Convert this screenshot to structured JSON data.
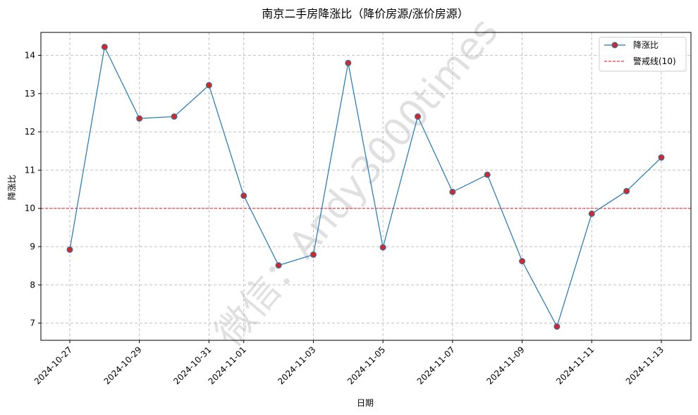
{
  "chart_data": {
    "type": "line",
    "title": "南京二手房降涨比（降价房源/涨价房源）",
    "xlabel": "日期",
    "ylabel": "降涨比",
    "x": [
      "2024-10-27",
      "2024-10-28",
      "2024-10-29",
      "2024-10-30",
      "2024-10-31",
      "2024-11-01",
      "2024-11-02",
      "2024-11-03",
      "2024-11-04",
      "2024-11-05",
      "2024-11-06",
      "2024-11-07",
      "2024-11-08",
      "2024-11-09",
      "2024-11-10",
      "2024-11-11",
      "2024-11-12",
      "2024-11-13"
    ],
    "x_tick_labels": [
      "2024-10-27",
      "2024-10-29",
      "2024-10-31",
      "2024-11-01",
      "2024-11-03",
      "2024-11-05",
      "2024-11-07",
      "2024-11-09",
      "2024-11-11",
      "2024-11-13"
    ],
    "ylim": [
      6.55,
      14.6
    ],
    "y_ticks": [
      7,
      8,
      9,
      10,
      11,
      12,
      13,
      14
    ],
    "series": [
      {
        "name": "降涨比",
        "values": [
          8.92,
          14.22,
          12.35,
          12.4,
          13.22,
          10.33,
          8.51,
          8.79,
          13.8,
          8.98,
          12.4,
          10.43,
          10.88,
          8.62,
          6.91,
          9.86,
          10.45,
          11.33
        ],
        "line_color": "#1f77b4",
        "marker_color": "#d62728"
      }
    ],
    "reference_line": {
      "name": "警戒线(10)",
      "value": 10,
      "color": "#ff0000"
    },
    "legend_position": "top-right",
    "grid": true
  },
  "watermark": "微信：Andy3000times"
}
